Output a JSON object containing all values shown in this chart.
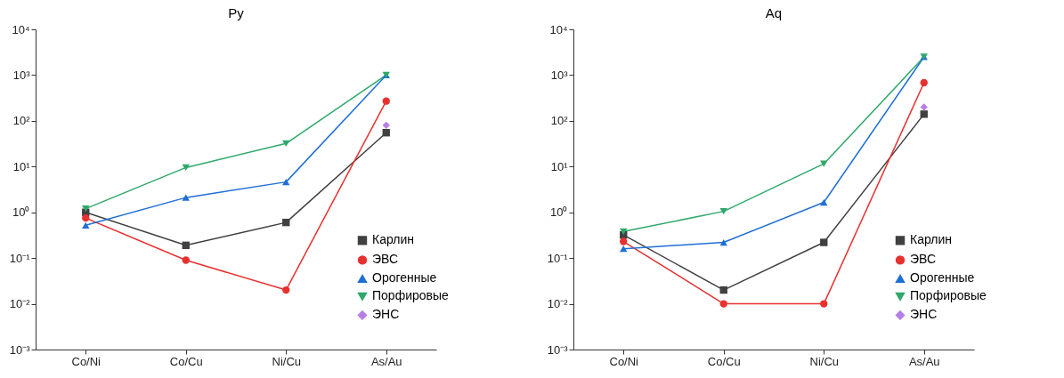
{
  "chart_data": [
    {
      "type": "line",
      "title": "Py",
      "categories": [
        "Co/Ni",
        "Co/Cu",
        "Ni/Cu",
        "As/Au"
      ],
      "log": true,
      "ylim": [
        0.001,
        10000
      ],
      "yticks": [
        {
          "value": 0.001,
          "label": "10⁻³"
        },
        {
          "value": 0.01,
          "label": "10⁻²"
        },
        {
          "value": 0.1,
          "label": "10⁻¹"
        },
        {
          "value": 1,
          "label": "10⁰"
        },
        {
          "value": 10,
          "label": "10¹"
        },
        {
          "value": 100,
          "label": "10²"
        },
        {
          "value": 1000,
          "label": "10³"
        },
        {
          "value": 10000,
          "label": "10⁴"
        }
      ],
      "legend": "bottom right",
      "grid": false,
      "series": [
        {
          "name": "Карлин",
          "color": "#404040",
          "marker": "square",
          "values": [
            1.0,
            0.19,
            0.6,
            55
          ]
        },
        {
          "name": "ЭВС",
          "color": "#e8312f",
          "marker": "circle",
          "values": [
            0.75,
            0.09,
            0.02,
            270
          ]
        },
        {
          "name": "Орогенные",
          "color": "#1f6fd6",
          "marker": "triangle",
          "values": [
            0.52,
            2.1,
            4.6,
            1000
          ]
        },
        {
          "name": "Порфировые",
          "color": "#2ea86a",
          "marker": "triangle-down",
          "values": [
            1.2,
            9.5,
            32,
            1000
          ]
        },
        {
          "name": "ЭНС",
          "color": "#b67ee8",
          "marker": "diamond",
          "values": [
            null,
            null,
            null,
            80
          ]
        }
      ]
    },
    {
      "type": "line",
      "title": "Aq",
      "categories": [
        "Co/Ni",
        "Co/Cu",
        "Ni/Cu",
        "As/Au"
      ],
      "log": true,
      "ylim": [
        0.001,
        10000
      ],
      "yticks": [
        {
          "value": 0.001,
          "label": "10⁻³"
        },
        {
          "value": 0.01,
          "label": "10⁻²"
        },
        {
          "value": 0.1,
          "label": "10⁻¹"
        },
        {
          "value": 1,
          "label": "10⁰"
        },
        {
          "value": 10,
          "label": "10¹"
        },
        {
          "value": 100,
          "label": "10²"
        },
        {
          "value": 1000,
          "label": "10³"
        },
        {
          "value": 10000,
          "label": "10⁴"
        }
      ],
      "legend": "bottom right",
      "grid": false,
      "series": [
        {
          "name": "Карлин",
          "color": "#404040",
          "marker": "square",
          "values": [
            0.32,
            0.02,
            0.22,
            140
          ]
        },
        {
          "name": "ЭВС",
          "color": "#e8312f",
          "marker": "circle",
          "values": [
            0.23,
            0.01,
            0.01,
            680
          ]
        },
        {
          "name": "Орогенные",
          "color": "#1f6fd6",
          "marker": "triangle",
          "values": [
            0.16,
            0.22,
            1.65,
            2500
          ]
        },
        {
          "name": "Порфировые",
          "color": "#2ea86a",
          "marker": "triangle-down",
          "values": [
            0.38,
            1.05,
            11.5,
            2500
          ]
        },
        {
          "name": "ЭНС",
          "color": "#b67ee8",
          "marker": "diamond",
          "values": [
            null,
            null,
            null,
            200
          ]
        }
      ]
    }
  ]
}
